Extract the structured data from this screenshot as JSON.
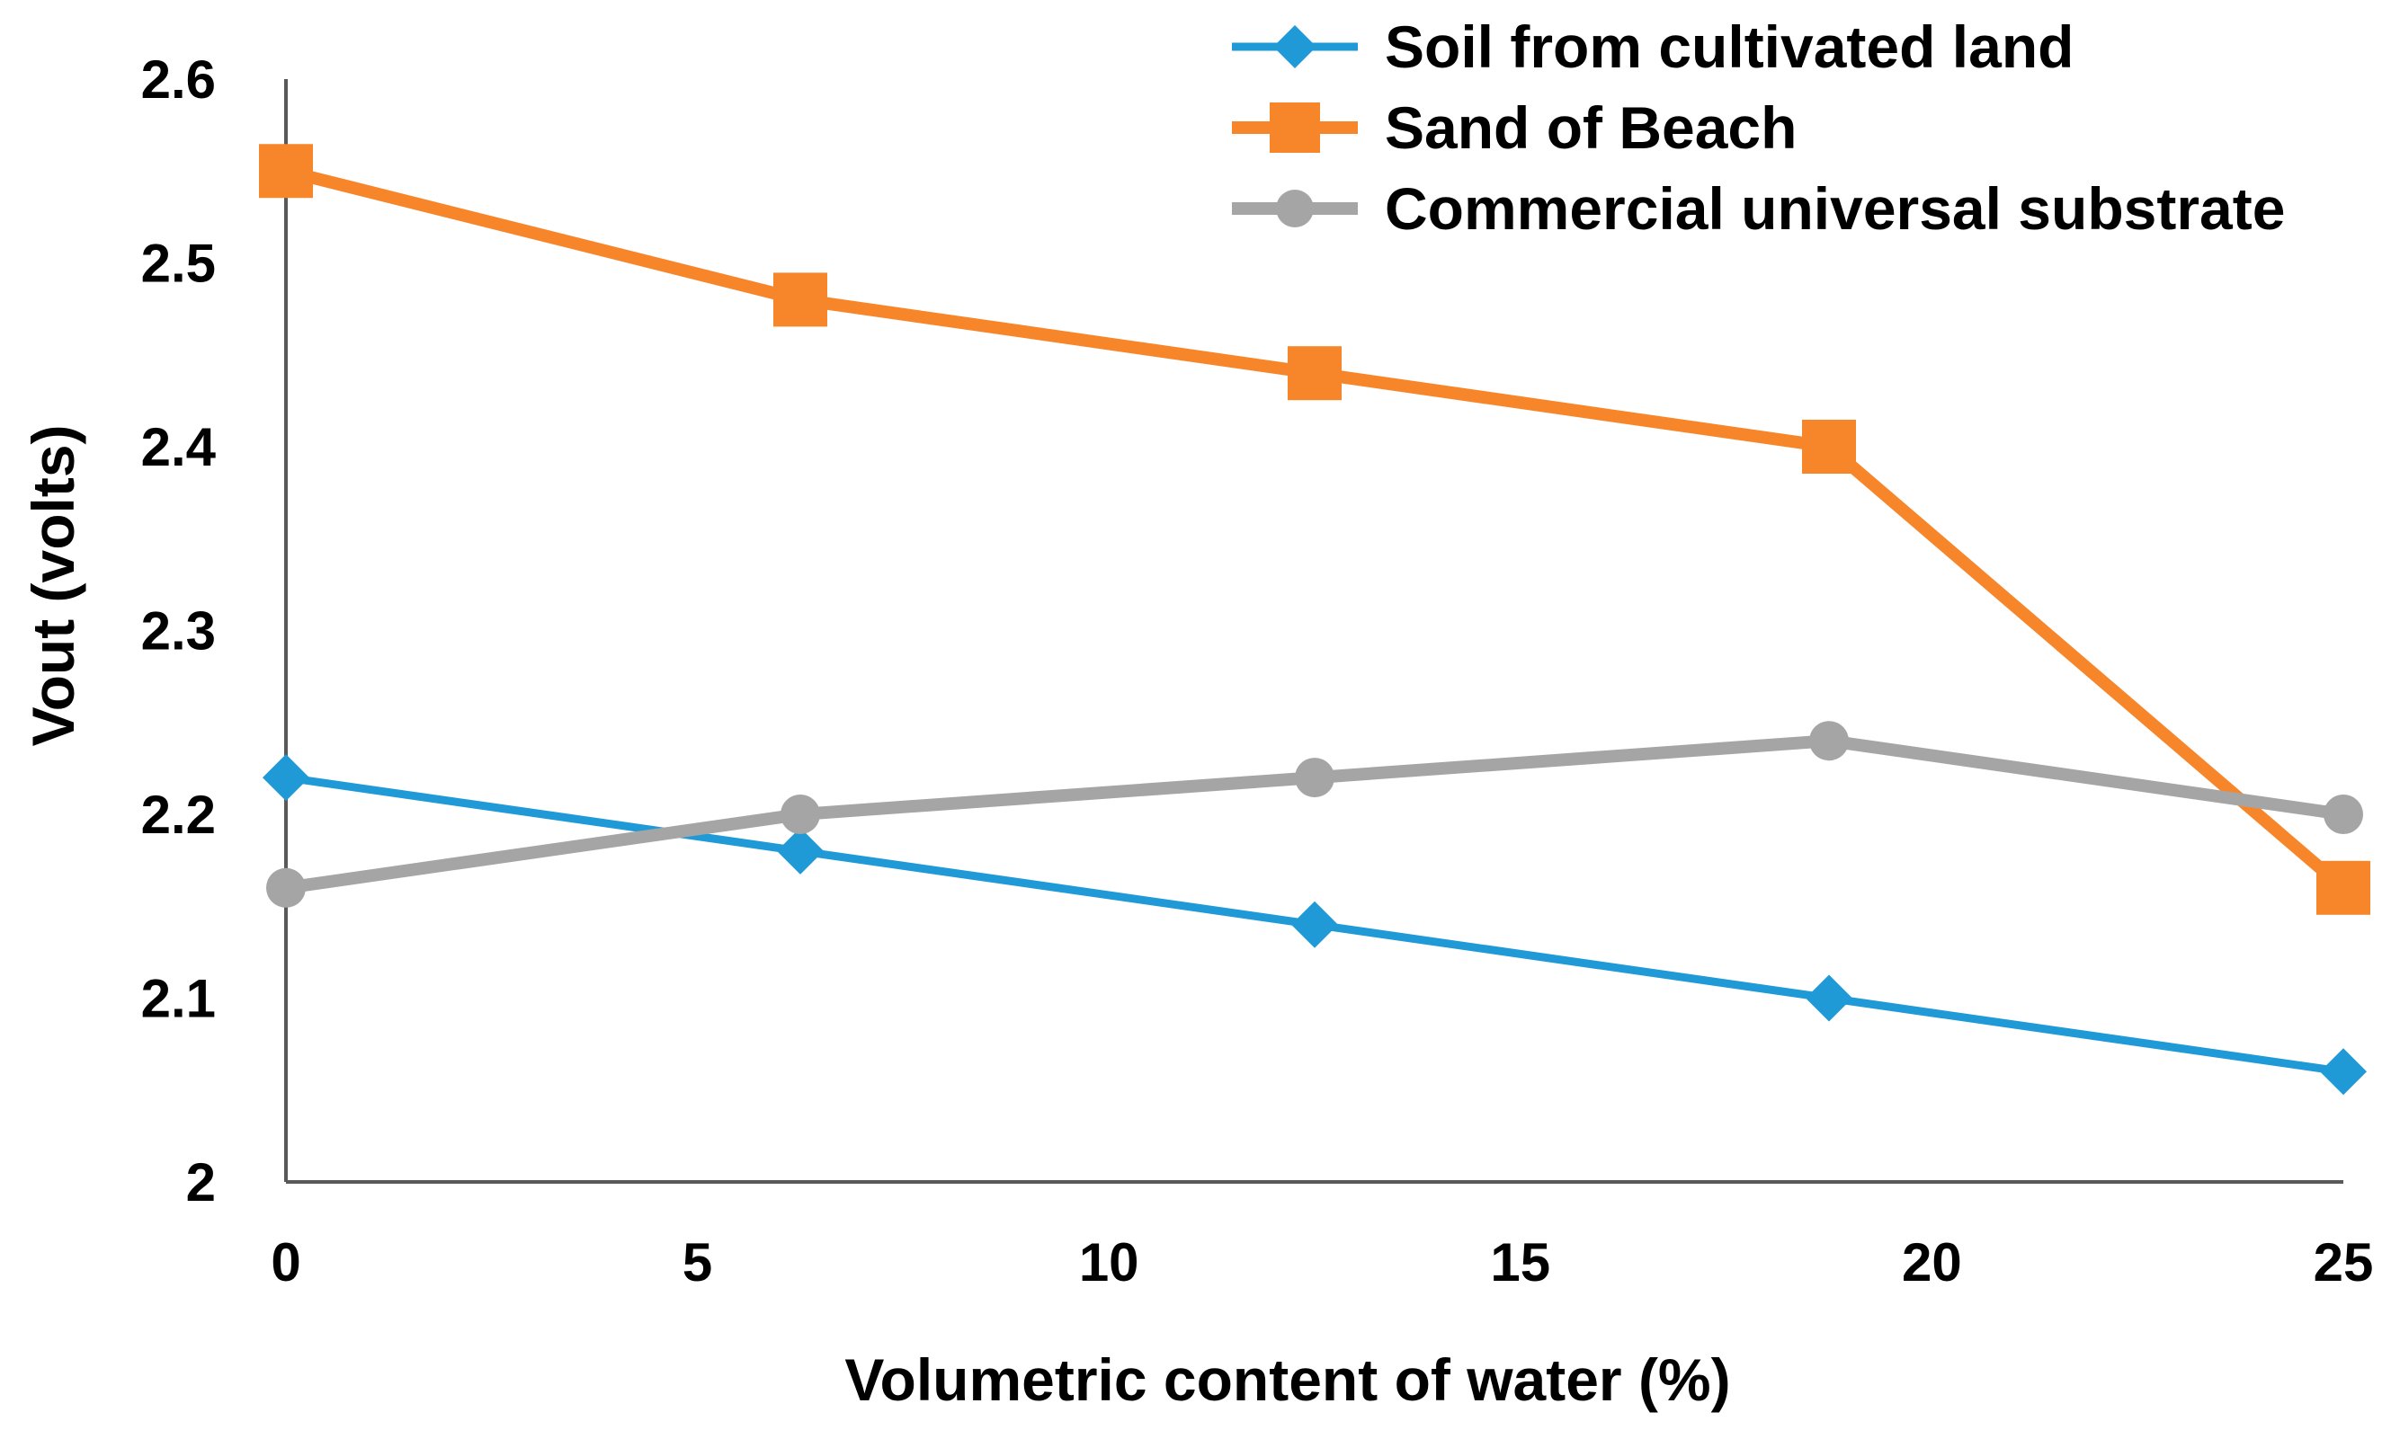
{
  "chart_data": {
    "type": "line",
    "title": "",
    "xlabel": "Volumetric content of water (%)",
    "ylabel": "Vout (volts)",
    "xlim": [
      0,
      25
    ],
    "ylim": [
      2,
      2.6
    ],
    "x_ticks": [
      0,
      5,
      10,
      15,
      20,
      25
    ],
    "x_tick_labels": [
      "0",
      "5",
      "10",
      "15",
      "20",
      "25"
    ],
    "y_ticks": [
      2,
      2.1,
      2.2,
      2.3,
      2.4,
      2.5,
      2.6
    ],
    "y_tick_labels": [
      "2",
      "2.1",
      "2.2",
      "2.3",
      "2.4",
      "2.5",
      "2.6"
    ],
    "grid": false,
    "legend_position": "top-right",
    "series": [
      {
        "name": "Soil from cultivated land",
        "color": "#1f9ad6",
        "marker": "diamond",
        "x": [
          0,
          6.25,
          12.5,
          18.75,
          25
        ],
        "values": [
          2.22,
          2.18,
          2.14,
          2.1,
          2.06
        ]
      },
      {
        "name": "Sand of Beach",
        "color": "#f7862b",
        "marker": "square",
        "x": [
          0,
          6.25,
          12.5,
          18.75,
          25
        ],
        "values": [
          2.55,
          2.48,
          2.44,
          2.4,
          2.16
        ]
      },
      {
        "name": "Commercial universal substrate",
        "color": "#a5a5a5",
        "marker": "circle",
        "x": [
          0,
          6.25,
          12.5,
          18.75,
          25
        ],
        "values": [
          2.16,
          2.2,
          2.22,
          2.24,
          2.2
        ]
      }
    ]
  }
}
